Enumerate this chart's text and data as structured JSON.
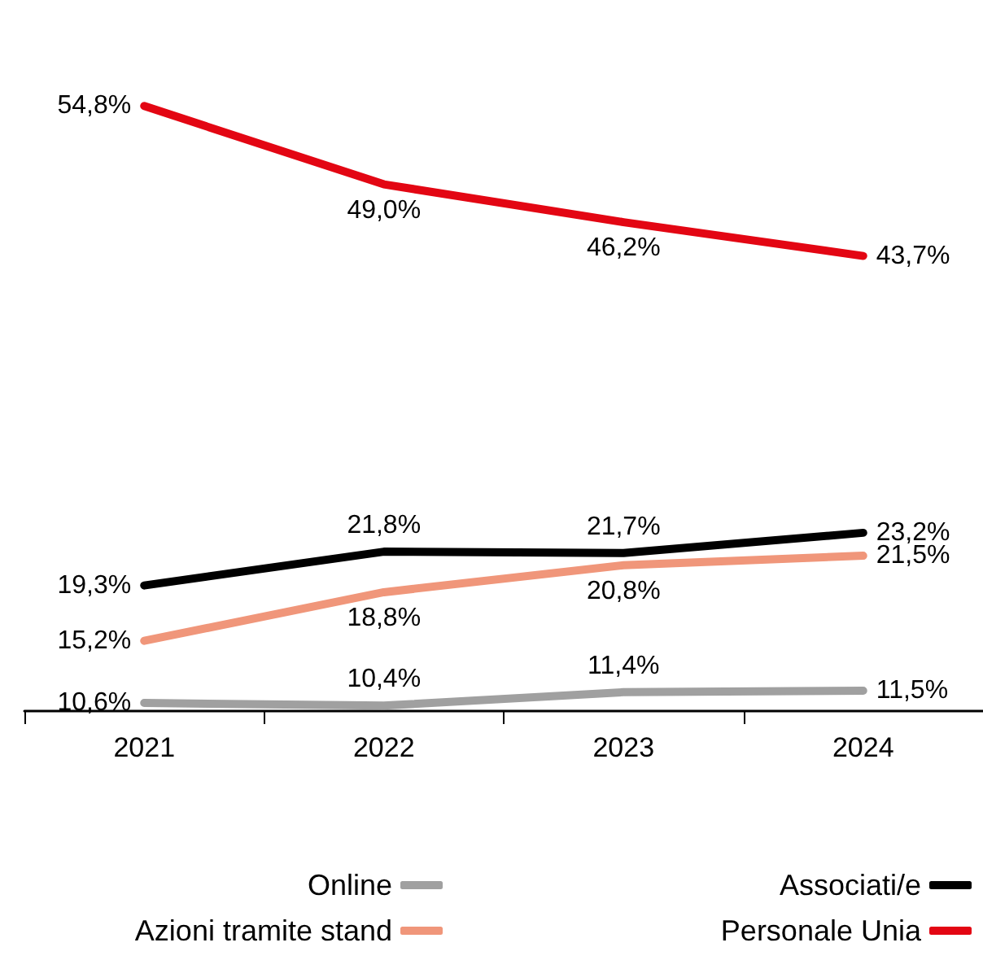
{
  "chart_data": {
    "type": "line",
    "categories": [
      "2021",
      "2022",
      "2023",
      "2024"
    ],
    "legend": "bottom",
    "data_labels": true,
    "series": [
      {
        "name": "Online",
        "color": "#a0a0a0",
        "values": [
          10.6,
          10.4,
          11.4,
          11.5
        ],
        "value_labels": [
          "10,6%",
          "10,4%",
          "11,4%",
          "11,5%"
        ]
      },
      {
        "name": "Associati/e",
        "color": "#000000",
        "values": [
          19.3,
          21.8,
          21.7,
          23.2
        ],
        "value_labels": [
          "19,3%",
          "21,8%",
          "21,7%",
          "23,2%"
        ]
      },
      {
        "name": "Azioni tramite stand",
        "color": "#f0967a",
        "values": [
          15.2,
          18.8,
          20.8,
          21.5
        ],
        "value_labels": [
          "15,2%",
          "18,8%",
          "20,8%",
          "21,5%"
        ]
      },
      {
        "name": "Personale Unia",
        "color": "#e30613",
        "values": [
          54.8,
          49.0,
          46.2,
          43.7
        ],
        "value_labels": [
          "54,8%",
          "49,0%",
          "46,2%",
          "43,7%"
        ]
      }
    ]
  }
}
